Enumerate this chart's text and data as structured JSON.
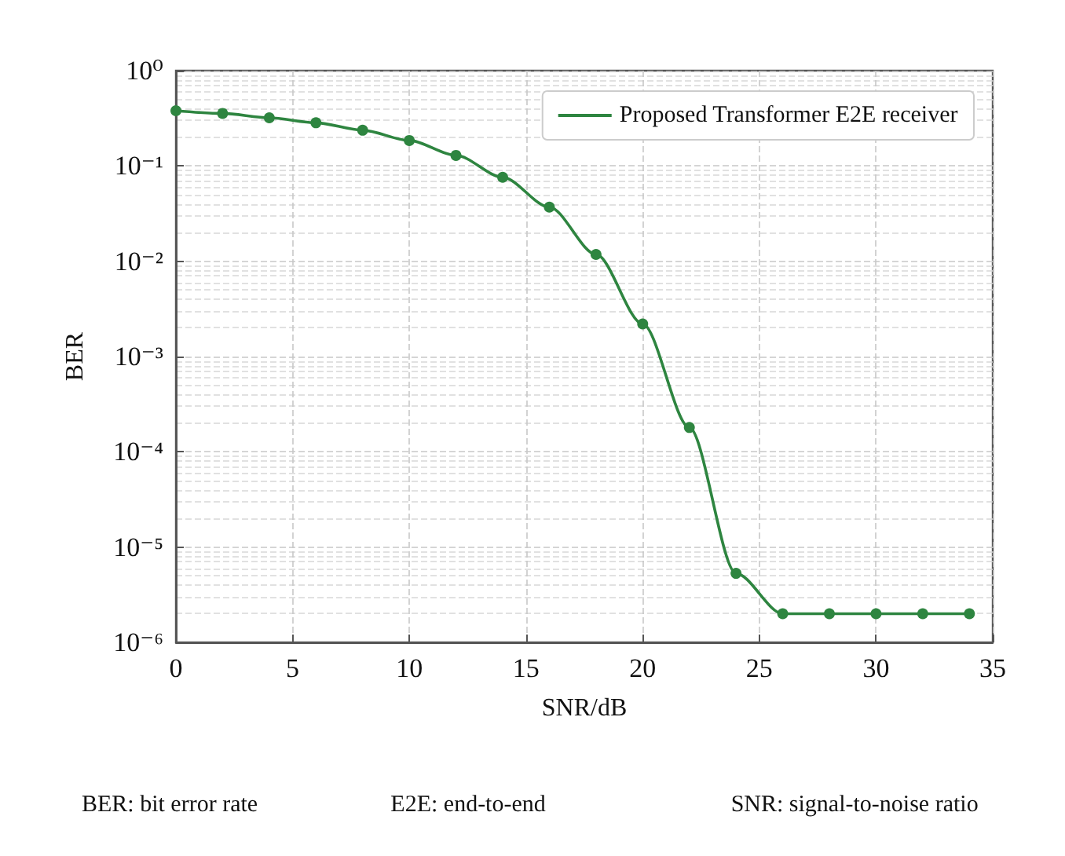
{
  "chart_data": {
    "type": "line",
    "xlabel": "SNR/dB",
    "ylabel": "BER",
    "x": [
      0,
      2,
      4,
      6,
      8,
      10,
      12,
      14,
      16,
      18,
      20,
      22,
      24,
      26,
      28,
      30,
      32,
      34
    ],
    "series": [
      {
        "name": "Proposed Transformer E2E receiver",
        "color": "#2e8540",
        "values": [
          0.38,
          0.356,
          0.32,
          0.284,
          0.237,
          0.185,
          0.129,
          0.076,
          0.037,
          0.0118,
          0.0022,
          0.00018,
          5.3e-06,
          2e-06,
          2e-06,
          2e-06,
          2e-06,
          2e-06
        ]
      }
    ],
    "xlim": [
      0,
      35
    ],
    "xticks": [
      0,
      5,
      10,
      15,
      20,
      25,
      30,
      35
    ],
    "ylim": [
      1e-06,
      1
    ],
    "yticks": [
      {
        "value": 1,
        "label": "10⁰"
      },
      {
        "value": 0.1,
        "label": "10⁻¹"
      },
      {
        "value": 0.01,
        "label": "10⁻²"
      },
      {
        "value": 0.001,
        "label": "10⁻³"
      },
      {
        "value": 0.0001,
        "label": "10⁻⁴"
      },
      {
        "value": 1e-05,
        "label": "10⁻⁵"
      },
      {
        "value": 1e-06,
        "label": "10⁻⁶"
      }
    ],
    "log": "y",
    "grid": true,
    "legend": "top right",
    "marker": "circle",
    "line_style": "solid",
    "annotations": [
      "BER: bit error rate",
      "E2E: end-to-end",
      "SNR: signal-to-noise ratio"
    ]
  }
}
